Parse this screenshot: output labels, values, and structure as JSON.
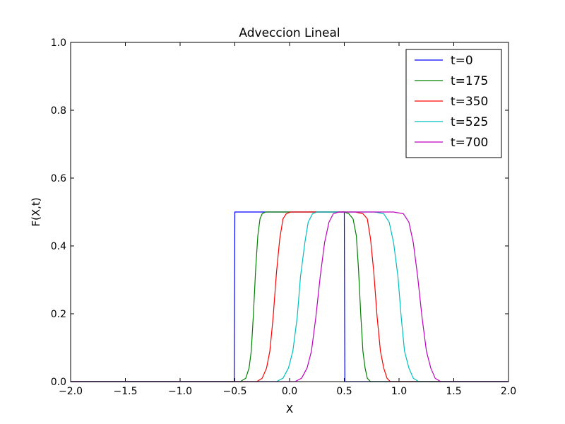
{
  "chart_data": {
    "type": "line",
    "title": "Adveccion Lineal",
    "xlabel": "X",
    "ylabel": "F(X,t)",
    "xlim": [
      -2.0,
      2.0
    ],
    "ylim": [
      0.0,
      1.0
    ],
    "xticks": [
      "−2.0",
      "−1.5",
      "−1.0",
      "−0.5",
      "0.0",
      "0.5",
      "1.0",
      "1.5",
      "2.0"
    ],
    "xtick_values": [
      -2.0,
      -1.5,
      -1.0,
      -0.5,
      0.0,
      0.5,
      1.0,
      1.5,
      2.0
    ],
    "yticks": [
      "0.0",
      "0.2",
      "0.4",
      "0.6",
      "0.8",
      "1.0"
    ],
    "ytick_values": [
      0.0,
      0.2,
      0.4,
      0.6,
      0.8,
      1.0
    ],
    "grid": false,
    "legend_position": "top-right",
    "series": [
      {
        "name": "t=0",
        "color": "#0000ff",
        "x": [
          -2.0,
          -0.505,
          -0.5,
          0.5,
          0.505,
          2.0
        ],
        "y": [
          0.0,
          0.0,
          0.5,
          0.5,
          0.0,
          0.0
        ]
      },
      {
        "name": "t=175",
        "color": "#008000",
        "x": [
          -2.0,
          -0.45,
          -0.4,
          -0.37,
          -0.35,
          -0.33,
          -0.31,
          -0.29,
          -0.27,
          -0.25,
          -0.22,
          -0.18,
          0.5,
          0.54,
          0.58,
          0.61,
          0.63,
          0.65,
          0.67,
          0.69,
          0.71,
          0.74,
          0.78,
          2.0
        ],
        "y": [
          0.0,
          0.0,
          0.01,
          0.04,
          0.09,
          0.2,
          0.33,
          0.43,
          0.48,
          0.495,
          0.5,
          0.5,
          0.5,
          0.495,
          0.48,
          0.43,
          0.33,
          0.2,
          0.09,
          0.04,
          0.01,
          0.0,
          0.0,
          0.0
        ]
      },
      {
        "name": "t=350",
        "color": "#ff0000",
        "x": [
          -2.0,
          -0.3,
          -0.25,
          -0.21,
          -0.18,
          -0.15,
          -0.12,
          -0.09,
          -0.06,
          -0.03,
          0.01,
          0.05,
          0.5,
          0.6,
          0.67,
          0.71,
          0.74,
          0.77,
          0.8,
          0.83,
          0.86,
          0.89,
          0.92,
          0.97,
          2.0
        ],
        "y": [
          0.0,
          0.0,
          0.01,
          0.04,
          0.09,
          0.19,
          0.32,
          0.42,
          0.48,
          0.495,
          0.5,
          0.5,
          0.5,
          0.5,
          0.495,
          0.48,
          0.42,
          0.32,
          0.19,
          0.09,
          0.04,
          0.01,
          0.0,
          0.0,
          0.0
        ]
      },
      {
        "name": "t=525",
        "color": "#00bfbf",
        "x": [
          -2.0,
          -0.12,
          -0.06,
          -0.01,
          0.03,
          0.07,
          0.1,
          0.14,
          0.17,
          0.21,
          0.25,
          0.3,
          0.5,
          0.78,
          0.86,
          0.91,
          0.95,
          0.99,
          1.02,
          1.05,
          1.09,
          1.13,
          1.18,
          1.24,
          2.0
        ],
        "y": [
          0.0,
          0.0,
          0.01,
          0.04,
          0.09,
          0.19,
          0.31,
          0.41,
          0.47,
          0.495,
          0.5,
          0.5,
          0.5,
          0.5,
          0.495,
          0.47,
          0.41,
          0.31,
          0.19,
          0.09,
          0.04,
          0.01,
          0.0,
          0.0,
          0.0
        ]
      },
      {
        "name": "t=700",
        "color": "#bf00bf",
        "x": [
          -2.0,
          0.05,
          0.11,
          0.16,
          0.2,
          0.24,
          0.28,
          0.32,
          0.36,
          0.4,
          0.45,
          0.5,
          0.95,
          1.04,
          1.09,
          1.13,
          1.17,
          1.21,
          1.25,
          1.29,
          1.33,
          1.38,
          1.45,
          2.0
        ],
        "y": [
          0.0,
          0.0,
          0.01,
          0.04,
          0.09,
          0.19,
          0.31,
          0.41,
          0.47,
          0.495,
          0.5,
          0.5,
          0.5,
          0.495,
          0.47,
          0.41,
          0.31,
          0.19,
          0.09,
          0.04,
          0.01,
          0.0,
          0.0,
          0.0
        ]
      }
    ]
  }
}
